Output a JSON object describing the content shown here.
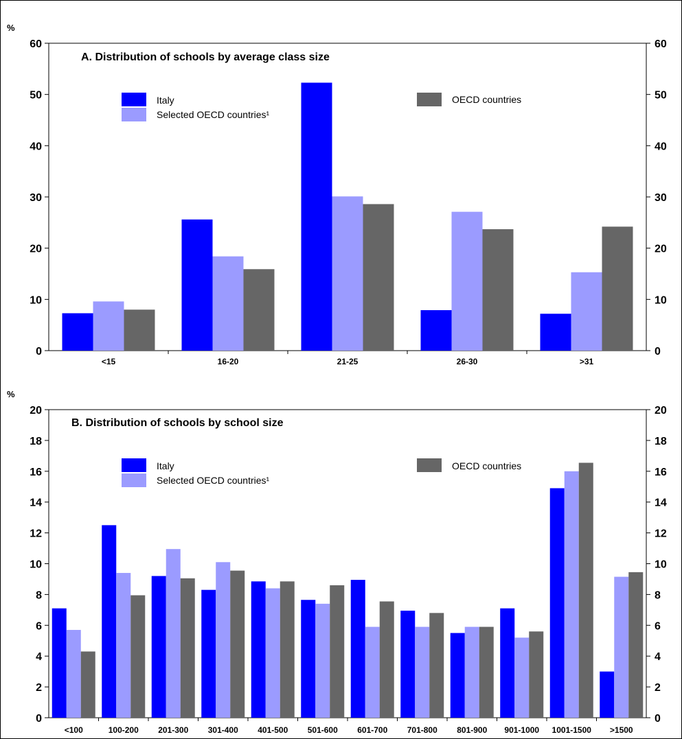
{
  "colors": {
    "italy": "#0000ff",
    "selected": "#9b9bff",
    "oecd": "#666666"
  },
  "chart_data": [
    {
      "type": "bar",
      "title": "A. Distribution of schools by average class size",
      "unit": "%",
      "ylim": [
        0,
        60
      ],
      "yticks": [
        0,
        10,
        20,
        30,
        40,
        50,
        60
      ],
      "categories": [
        "<15",
        "16-20",
        "21-25",
        "26-30",
        ">31"
      ],
      "series": [
        {
          "name": "Italy",
          "values": [
            7.3,
            25.6,
            52.3,
            7.9,
            7.2
          ]
        },
        {
          "name": "Selected OECD countries¹",
          "values": [
            9.6,
            18.4,
            30.1,
            27.1,
            15.3
          ]
        },
        {
          "name": "OECD countries",
          "values": [
            8.0,
            15.9,
            28.6,
            23.7,
            24.2
          ]
        }
      ],
      "legend_position": "top"
    },
    {
      "type": "bar",
      "title": "B. Distribution of schools by school size",
      "unit": "%",
      "ylim": [
        0,
        20
      ],
      "yticks": [
        0,
        2,
        4,
        6,
        8,
        10,
        12,
        14,
        16,
        18,
        20
      ],
      "categories": [
        "<100",
        "100-200",
        "201-300",
        "301-400",
        "401-500",
        "501-600",
        "601-700",
        "701-800",
        "801-900",
        "901-1000",
        "1001-1500",
        ">1500"
      ],
      "series": [
        {
          "name": "Italy",
          "values": [
            7.1,
            12.5,
            9.2,
            8.3,
            8.85,
            7.65,
            8.95,
            6.95,
            5.5,
            7.1,
            14.9,
            3.0
          ]
        },
        {
          "name": "Selected OECD countries¹",
          "values": [
            5.7,
            9.4,
            10.95,
            10.1,
            8.4,
            7.4,
            5.9,
            5.9,
            5.9,
            5.2,
            16.0,
            9.15
          ]
        },
        {
          "name": "OECD countries",
          "values": [
            4.3,
            7.95,
            9.05,
            9.55,
            8.85,
            8.6,
            7.55,
            6.8,
            5.9,
            5.6,
            16.55,
            9.45
          ]
        }
      ],
      "legend_position": "top"
    }
  ]
}
